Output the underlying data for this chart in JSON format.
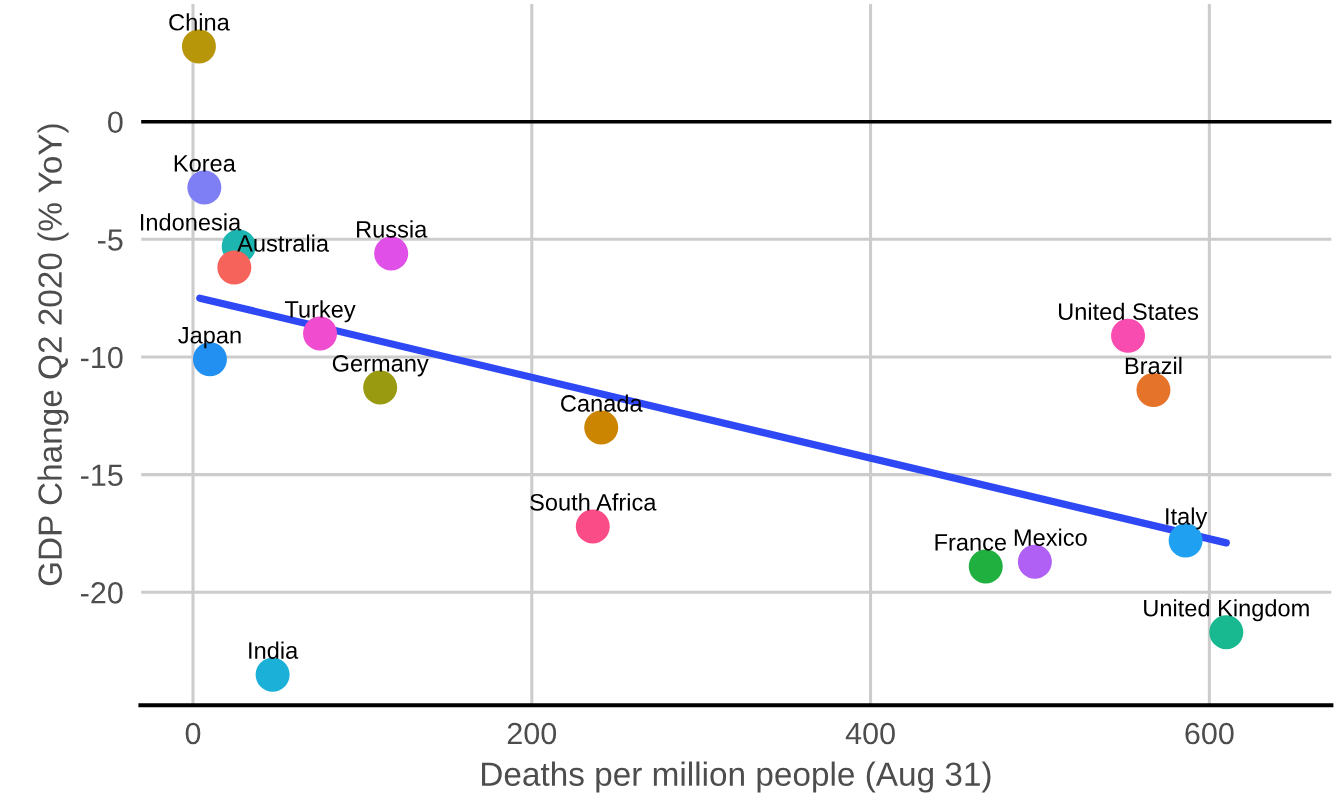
{
  "chart_data": {
    "type": "scatter",
    "xlabel": "Deaths per million people (Aug 31)",
    "ylabel": "GDP Change Q2 2020 (% YoY)",
    "xlim": [
      -31,
      672
    ],
    "ylim": [
      -24.8,
      5.0
    ],
    "xticks": [
      0,
      200,
      400,
      600
    ],
    "yticks": [
      -20,
      -15,
      -10,
      -5,
      0
    ],
    "grid": true,
    "legend": false,
    "marker": "circle",
    "ref_lines": [
      {
        "axis": "y",
        "value": 0,
        "color": "#000000"
      }
    ],
    "series": [
      {
        "name": "China",
        "color": "#b8960a",
        "x": [
          3.5
        ],
        "values": [
          3.2
        ]
      },
      {
        "name": "Korea",
        "color": "#7f7ff5",
        "x": [
          6.7
        ],
        "values": [
          -2.8
        ]
      },
      {
        "name": "Indonesia",
        "color": "#1cb5b0",
        "x": [
          27
        ],
        "values": [
          -5.3
        ]
      },
      {
        "name": "Australia",
        "color": "#f5635a",
        "x": [
          24.4
        ],
        "values": [
          -6.2
        ]
      },
      {
        "name": "Russia",
        "color": "#e04fe8",
        "x": [
          117
        ],
        "values": [
          -5.6
        ]
      },
      {
        "name": "Turkey",
        "color": "#f04cd0",
        "x": [
          75
        ],
        "values": [
          -9.0
        ]
      },
      {
        "name": "Japan",
        "color": "#2290f0",
        "x": [
          10
        ],
        "values": [
          -10.1
        ]
      },
      {
        "name": "Germany",
        "color": "#9a9a10",
        "x": [
          110.5
        ],
        "values": [
          -11.3
        ]
      },
      {
        "name": "Canada",
        "color": "#cc8500",
        "x": [
          241
        ],
        "values": [
          -13.0
        ]
      },
      {
        "name": "South Africa",
        "color": "#fa4c86",
        "x": [
          236
        ],
        "values": [
          -17.2
        ]
      },
      {
        "name": "India",
        "color": "#1bb0d8",
        "x": [
          47
        ],
        "values": [
          -23.5
        ]
      },
      {
        "name": "United States",
        "color": "#f84cb0",
        "x": [
          552
        ],
        "values": [
          -9.1
        ]
      },
      {
        "name": "Brazil",
        "color": "#e5732a",
        "x": [
          567
        ],
        "values": [
          -11.4
        ]
      },
      {
        "name": "Italy",
        "color": "#20a0f0",
        "x": [
          586
        ],
        "values": [
          -17.8
        ]
      },
      {
        "name": "France",
        "color": "#20b040",
        "x": [
          468
        ],
        "values": [
          -18.9
        ]
      },
      {
        "name": "Mexico",
        "color": "#b060f5",
        "x": [
          497
        ],
        "values": [
          -18.7
        ]
      },
      {
        "name": "United Kingdom",
        "color": "#18b890",
        "x": [
          610
        ],
        "values": [
          -21.7
        ]
      },
      {
        "type": "line",
        "color": "#2e48f5",
        "x": [
          4,
          610
        ],
        "values": [
          -7.5,
          -17.9
        ],
        "marker": "none"
      }
    ]
  }
}
